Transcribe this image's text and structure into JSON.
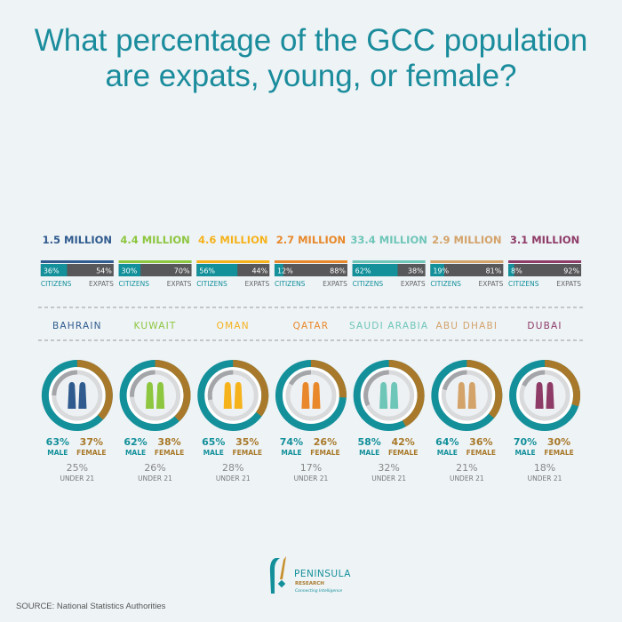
{
  "title": {
    "line1": "What percentage of the GCC population",
    "line2": "are expats, young, or female?"
  },
  "labels": {
    "citizens": "CITIZENS",
    "expats": "EXPATS",
    "male": "MALE",
    "female": "FEMALE",
    "under21": "UNDER 21"
  },
  "colors": {
    "citizens": "#13909a",
    "expats": "#58585a",
    "male": "#13909a",
    "female": "#a8792a",
    "under21": "#a3a5a8",
    "ring_base": "#d9dadc",
    "title": "#1a8c9c"
  },
  "icons": {
    "population": "person-icon (1 icon = 1 million)",
    "gender": "veiled-women-icon"
  },
  "chart_data": {
    "type": "infographic",
    "countries": [
      {
        "name": "BAHRAIN",
        "population_label": "1.5 MILLION",
        "population_millions": 1.5,
        "citizens_label": "36%",
        "expats_label": "54%",
        "citizens_pct": 36,
        "expats_pct": 54,
        "male_label": "63%",
        "female_label": "37%",
        "male_pct": 63,
        "female_pct": 37,
        "under21_label": "25%",
        "under21_pct": 25,
        "color": "#2f5b8e"
      },
      {
        "name": "KUWAIT",
        "population_label": "4.4 MILLION",
        "population_millions": 4.4,
        "citizens_label": "30%",
        "expats_label": "70%",
        "citizens_pct": 30,
        "expats_pct": 70,
        "male_label": "62%",
        "female_label": "38%",
        "male_pct": 62,
        "female_pct": 38,
        "under21_label": "26%",
        "under21_pct": 26,
        "color": "#8dc63f"
      },
      {
        "name": "OMAN",
        "population_label": "4.6 MILLION",
        "population_millions": 4.6,
        "citizens_label": "56%",
        "expats_label": "44%",
        "citizens_pct": 56,
        "expats_pct": 44,
        "male_label": "65%",
        "female_label": "35%",
        "male_pct": 65,
        "female_pct": 35,
        "under21_label": "28%",
        "under21_pct": 28,
        "color": "#f5b21b"
      },
      {
        "name": "QATAR",
        "population_label": "2.7 MILLION",
        "population_millions": 2.7,
        "citizens_label": "12%",
        "expats_label": "88%",
        "citizens_pct": 12,
        "expats_pct": 88,
        "male_label": "74%",
        "female_label": "26%",
        "male_pct": 74,
        "female_pct": 26,
        "under21_label": "17%",
        "under21_pct": 17,
        "color": "#e8882a"
      },
      {
        "name": "SAUDI ARABIA",
        "population_label": "33.4 MILLION",
        "population_millions": 33.4,
        "citizens_label": "62%",
        "expats_label": "38%",
        "citizens_pct": 62,
        "expats_pct": 38,
        "male_label": "58%",
        "female_label": "42%",
        "male_pct": 58,
        "female_pct": 42,
        "under21_label": "32%",
        "under21_pct": 32,
        "color": "#6ec6b8"
      },
      {
        "name": "ABU DHABI",
        "population_label": "2.9 MILLION",
        "population_millions": 2.9,
        "citizens_label": "19%",
        "expats_label": "81%",
        "citizens_pct": 19,
        "expats_pct": 81,
        "male_label": "64%",
        "female_label": "36%",
        "male_pct": 64,
        "female_pct": 36,
        "under21_label": "21%",
        "under21_pct": 21,
        "color": "#d3a36a"
      },
      {
        "name": "DUBAI",
        "population_label": "3.1 MILLION",
        "population_millions": 3.1,
        "citizens_label": "8%",
        "expats_label": "92%",
        "citizens_pct": 8,
        "expats_pct": 92,
        "male_label": "70%",
        "female_label": "30%",
        "male_pct": 70,
        "female_pct": 30,
        "under21_label": "18%",
        "under21_pct": 18,
        "color": "#8e3b67"
      }
    ]
  },
  "logo": {
    "name": "PENINSULA",
    "sub": "RESEARCH",
    "tagline": "Connecting Intelligence"
  },
  "source": "SOURCE: National Statistics Authorities"
}
